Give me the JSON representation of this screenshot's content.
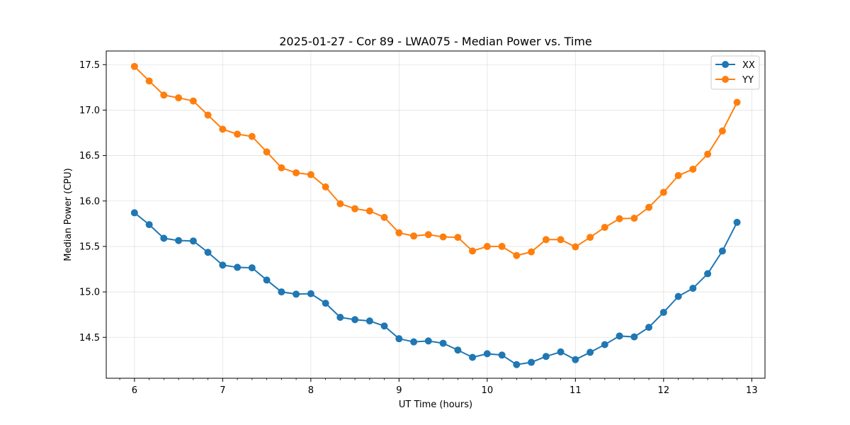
{
  "chart_data": {
    "type": "line",
    "title": "2025-01-27 - Cor 89 - LWA075 - Median Power vs. Time",
    "xlabel": "UT Time (hours)",
    "ylabel": "Median Power (CPU)",
    "xlim": [
      5.68,
      13.15
    ],
    "ylim": [
      14.05,
      17.65
    ],
    "xticks": [
      6,
      7,
      8,
      9,
      10,
      11,
      12,
      13
    ],
    "xtick_labels": [
      "6",
      "7",
      "8",
      "9",
      "10",
      "11",
      "12",
      "13"
    ],
    "yticks": [
      14.5,
      15.0,
      15.5,
      16.0,
      16.5,
      17.0,
      17.5
    ],
    "ytick_labels": [
      "14.5",
      "15.0",
      "15.5",
      "16.0",
      "16.5",
      "17.0",
      "17.5"
    ],
    "grid": true,
    "legend_position": "top-right",
    "x": [
      6.0,
      6.167,
      6.333,
      6.5,
      6.667,
      6.833,
      7.0,
      7.167,
      7.333,
      7.5,
      7.667,
      7.833,
      8.0,
      8.167,
      8.333,
      8.5,
      8.667,
      8.833,
      9.0,
      9.167,
      9.333,
      9.5,
      9.667,
      9.833,
      10.0,
      10.167,
      10.333,
      10.5,
      10.667,
      10.833,
      11.0,
      11.167,
      11.333,
      11.5,
      11.667,
      11.833,
      12.0,
      12.167,
      12.333,
      12.5,
      12.667,
      12.833
    ],
    "series": [
      {
        "name": "XX",
        "color": "#1f77b4",
        "values": [
          15.87,
          15.74,
          15.59,
          15.565,
          15.56,
          15.435,
          15.295,
          15.27,
          15.265,
          15.13,
          15.0,
          14.975,
          14.98,
          14.875,
          14.72,
          14.695,
          14.68,
          14.625,
          14.485,
          14.45,
          14.46,
          14.435,
          14.36,
          14.28,
          14.32,
          14.305,
          14.2,
          14.225,
          14.29,
          14.34,
          14.255,
          14.335,
          14.42,
          14.515,
          14.505,
          14.61,
          14.775,
          14.95,
          15.04,
          15.2,
          15.45,
          15.765
        ]
      },
      {
        "name": "YY",
        "color": "#ff7f0e",
        "values": [
          17.48,
          17.32,
          17.165,
          17.135,
          17.1,
          16.945,
          16.79,
          16.735,
          16.71,
          16.54,
          16.365,
          16.31,
          16.29,
          16.155,
          15.97,
          15.915,
          15.89,
          15.82,
          15.65,
          15.615,
          15.63,
          15.605,
          15.6,
          15.45,
          15.5,
          15.5,
          15.4,
          15.44,
          15.575,
          15.575,
          15.495,
          15.6,
          15.71,
          15.805,
          15.81,
          15.93,
          16.095,
          16.28,
          16.35,
          16.515,
          16.77,
          17.085
        ]
      }
    ]
  }
}
